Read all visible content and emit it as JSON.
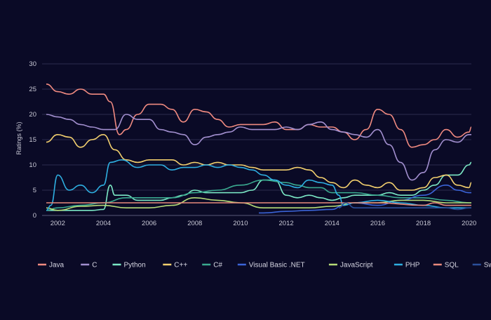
{
  "chart_data": {
    "type": "line",
    "title": "",
    "xlabel": "",
    "ylabel": "Ratings (%)",
    "xlim": [
      2001.5,
      2020.1
    ],
    "ylim": [
      0,
      30
    ],
    "y_ticks": [
      0,
      5,
      10,
      15,
      20,
      25,
      30
    ],
    "y_tick_labels": [
      "0",
      "5",
      "10",
      "15",
      "20",
      "25",
      "30"
    ],
    "x_ticks": [
      2002,
      2004,
      2006,
      2008,
      2010,
      2012,
      2014,
      2016,
      2018,
      2020
    ],
    "x_tick_labels": [
      "2002",
      "2004",
      "2006",
      "2008",
      "2010",
      "2012",
      "2014",
      "2016",
      "2018",
      "2020"
    ],
    "grid": "horizontal",
    "legend_position": "bottom",
    "series": [
      {
        "name": "Java",
        "color": "#f08a80",
        "x": [
          2001.5,
          2002,
          2002.5,
          2003,
          2003.5,
          2004,
          2004.3,
          2004.7,
          2005,
          2005.5,
          2006,
          2006.5,
          2007,
          2007.5,
          2008,
          2008.5,
          2009,
          2009.5,
          2010,
          2010.5,
          2011,
          2011.5,
          2012,
          2012.5,
          2013,
          2013.5,
          2014,
          2014.5,
          2015,
          2015.5,
          2016,
          2016.5,
          2017,
          2017.5,
          2018,
          2018.5,
          2019,
          2019.5,
          2020,
          2020.1
        ],
        "y": [
          26,
          24.5,
          24,
          25,
          24,
          24,
          22.5,
          16,
          17,
          20,
          22,
          22,
          21,
          18.5,
          21,
          20.5,
          19,
          17.5,
          18,
          18,
          18,
          18.5,
          17,
          17,
          18,
          17.5,
          17.5,
          16.5,
          15,
          17,
          21,
          20,
          17,
          13.5,
          14,
          15,
          17,
          15.5,
          16.5,
          17.5
        ]
      },
      {
        "name": "C",
        "color": "#a28fcf",
        "x": [
          2001.5,
          2002,
          2002.5,
          2003,
          2003.5,
          2004,
          2004.5,
          2005,
          2005.5,
          2006,
          2006.5,
          2007,
          2007.5,
          2008,
          2008.5,
          2009,
          2009.5,
          2010,
          2010.5,
          2011,
          2011.5,
          2012,
          2012.5,
          2013,
          2013.5,
          2014,
          2014.5,
          2015,
          2015.5,
          2016,
          2016.5,
          2017,
          2017.5,
          2018,
          2018.5,
          2019,
          2019.5,
          2020,
          2020.1
        ],
        "y": [
          20,
          19.5,
          19,
          18,
          17.5,
          17,
          17,
          20,
          19,
          19,
          17,
          16.5,
          16,
          14,
          15.5,
          16,
          16.5,
          17.5,
          17,
          17,
          17,
          17.5,
          17,
          18,
          18.5,
          17,
          16.5,
          16,
          15.5,
          17,
          14,
          10.5,
          7,
          8.5,
          13,
          15,
          14.5,
          16,
          16
        ]
      },
      {
        "name": "Python",
        "color": "#7be8c5",
        "x": [
          2001.5,
          2002,
          2002.5,
          2003,
          2003.5,
          2004,
          2004.3,
          2004.5,
          2005,
          2005.5,
          2006,
          2006.5,
          2007,
          2007.5,
          2008,
          2008.5,
          2009,
          2009.5,
          2010,
          2010.5,
          2011,
          2011.5,
          2012,
          2012.5,
          2013,
          2013.5,
          2014,
          2014.5,
          2015,
          2015.5,
          2016,
          2016.5,
          2017,
          2017.5,
          2018,
          2018.5,
          2019,
          2019.5,
          2020,
          2020.1
        ],
        "y": [
          1,
          1,
          1,
          1,
          1,
          1.2,
          6,
          4,
          4,
          3,
          3,
          3,
          3.5,
          4,
          5,
          4.5,
          4.5,
          4.5,
          4.5,
          5,
          7,
          7,
          4,
          3.5,
          4,
          3.5,
          3,
          3.5,
          4,
          4,
          4,
          4.5,
          4,
          4,
          5,
          6,
          8,
          8,
          10,
          10.5
        ]
      },
      {
        "name": "C++",
        "color": "#f2cf6e",
        "x": [
          2001.5,
          2002,
          2002.5,
          2003,
          2003.5,
          2004,
          2004.5,
          2005,
          2005.5,
          2006,
          2006.5,
          2007,
          2007.5,
          2008,
          2008.5,
          2009,
          2009.5,
          2010,
          2010.5,
          2011,
          2011.5,
          2012,
          2012.5,
          2013,
          2013.5,
          2014,
          2014.5,
          2015,
          2015.5,
          2016,
          2016.5,
          2017,
          2017.5,
          2018,
          2018.5,
          2019,
          2019.5,
          2020,
          2020.1
        ],
        "y": [
          14.5,
          16,
          15.5,
          13.5,
          15,
          16,
          13,
          11,
          10.5,
          11,
          11,
          11,
          10,
          10.5,
          10,
          10.5,
          10,
          10,
          9.5,
          9,
          9,
          9,
          9.5,
          9,
          7.5,
          6.5,
          5.5,
          7,
          6,
          5.5,
          6.5,
          5,
          5,
          5.5,
          7.5,
          8,
          6,
          5.5,
          6.5
        ]
      },
      {
        "name": "C#",
        "color": "#3aa98f",
        "x": [
          2001.5,
          2002,
          2003,
          2004,
          2005,
          2006,
          2007,
          2008,
          2009,
          2010,
          2011,
          2012,
          2012.5,
          2013,
          2013.5,
          2014,
          2015,
          2016,
          2017,
          2018,
          2019,
          2020,
          2020.1
        ],
        "y": [
          1,
          1.5,
          2,
          2.5,
          3.5,
          3.5,
          3.5,
          4.5,
          5,
          6,
          7,
          6.5,
          6,
          5.5,
          5.5,
          4.5,
          4.5,
          4,
          3.5,
          3.5,
          3,
          2.5,
          2.5
        ]
      },
      {
        "name": "Visual Basic .NET",
        "color": "#3b64d8",
        "x": [
          2010.8,
          2011,
          2012,
          2013,
          2014,
          2014.5,
          2015,
          2016,
          2017,
          2018,
          2019,
          2019.5,
          2020,
          2020.1
        ],
        "y": [
          0.5,
          0.5,
          0.8,
          1,
          1.2,
          2,
          2.5,
          2,
          3,
          4,
          6,
          5,
          4.5,
          4.5
        ]
      },
      {
        "name": "JavaScript",
        "color": "#b6dc78",
        "x": [
          2001.5,
          2002,
          2003,
          2004,
          2005,
          2006,
          2007,
          2008,
          2009,
          2010,
          2011,
          2012,
          2013,
          2014,
          2015,
          2016,
          2017,
          2018,
          2019,
          2020,
          2020.1
        ],
        "y": [
          1.5,
          1,
          1.8,
          2,
          1.5,
          1.5,
          2,
          3.5,
          3,
          2.5,
          1.5,
          1.5,
          1.5,
          1.8,
          2.5,
          2.5,
          3,
          3,
          2.5,
          2.5,
          2.5
        ]
      },
      {
        "name": "PHP",
        "color": "#2eaee0",
        "x": [
          2001.5,
          2001.7,
          2002,
          2002.5,
          2003,
          2003.5,
          2004,
          2004.3,
          2004.8,
          2005.5,
          2006,
          2006.5,
          2007,
          2007.5,
          2008,
          2008.5,
          2009,
          2009.5,
          2010,
          2010.5,
          2011,
          2011.5,
          2012,
          2012.5,
          2013,
          2013.5,
          2014,
          2014.3,
          2014.5,
          2015,
          2016,
          2017,
          2018,
          2019,
          2020,
          2020.1
        ],
        "y": [
          1,
          2,
          8,
          5,
          6,
          4.5,
          6,
          10.5,
          11,
          9.5,
          10,
          10,
          9,
          9.5,
          9.5,
          10,
          9.5,
          10,
          9.5,
          9,
          8,
          7,
          6,
          5.5,
          7,
          6.5,
          6,
          4,
          2,
          2.5,
          3,
          2.5,
          2,
          1.5,
          1.5,
          1.5
        ]
      },
      {
        "name": "SQL",
        "color": "#e8897c",
        "x": [
          2001.5,
          2003,
          2005,
          2007,
          2009,
          2011,
          2013,
          2014.5,
          2016,
          2018,
          2018.5,
          2019,
          2020,
          2020.1
        ],
        "y": [
          2.5,
          2.5,
          2.5,
          2.5,
          2.5,
          2.5,
          2.5,
          2.5,
          2.5,
          2,
          2.5,
          2,
          2,
          2
        ]
      },
      {
        "name": "Swift",
        "color": "#2b4f9a",
        "x": [
          2014.3,
          2014.6,
          2015,
          2016,
          2017,
          2018,
          2019,
          2019.5,
          2020,
          2020.1
        ],
        "y": [
          1.5,
          2.5,
          1.5,
          1.5,
          1.5,
          1.5,
          1.5,
          1.2,
          1.5,
          1.5
        ]
      }
    ]
  }
}
